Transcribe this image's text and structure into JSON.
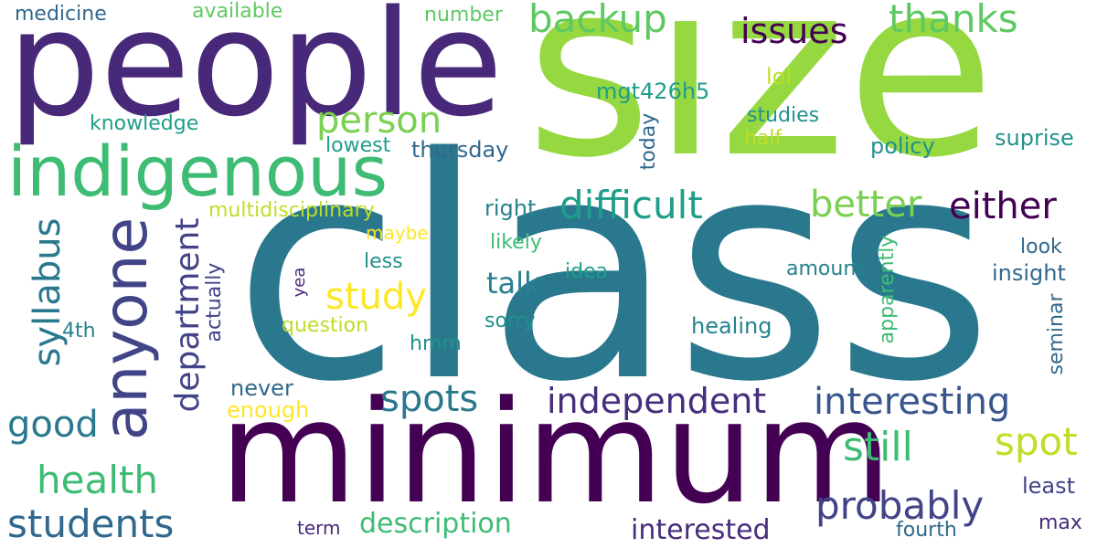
{
  "words": [
    {
      "text": "size",
      "color": "#95d840"
    },
    {
      "text": "class",
      "color": "#2a788e"
    },
    {
      "text": "people",
      "color": "#482878"
    },
    {
      "text": "minimum",
      "color": "#440154"
    },
    {
      "text": "indigenous",
      "color": "#3ebc74"
    },
    {
      "text": "anyone",
      "color": "#414487"
    },
    {
      "text": "backup",
      "color": "#5ec962"
    },
    {
      "text": "issues",
      "color": "#440154"
    },
    {
      "text": "thanks",
      "color": "#5ec962"
    },
    {
      "text": "person",
      "color": "#7ad151"
    },
    {
      "text": "difficult",
      "color": "#1f9e89"
    },
    {
      "text": "better",
      "color": "#7ad151"
    },
    {
      "text": "either",
      "color": "#440154"
    },
    {
      "text": "syllabus",
      "color": "#2a788e"
    },
    {
      "text": "department",
      "color": "#414487"
    },
    {
      "text": "study",
      "color": "#fde725"
    },
    {
      "text": "spots",
      "color": "#2a788e"
    },
    {
      "text": "independent",
      "color": "#472d7b"
    },
    {
      "text": "interesting",
      "color": "#39568c"
    },
    {
      "text": "good",
      "color": "#2a788e"
    },
    {
      "text": "health",
      "color": "#3ebc74"
    },
    {
      "text": "students",
      "color": "#31688e"
    },
    {
      "text": "still",
      "color": "#3ebc74"
    },
    {
      "text": "spot",
      "color": "#bddf26"
    },
    {
      "text": "probably",
      "color": "#414487"
    },
    {
      "text": "interested",
      "color": "#472d7b"
    },
    {
      "text": "description",
      "color": "#3ebc74"
    },
    {
      "text": "medicine",
      "color": "#31688e"
    },
    {
      "text": "available",
      "color": "#5ec962"
    },
    {
      "text": "number",
      "color": "#5ec962"
    },
    {
      "text": "mgt426h5",
      "color": "#1f9e89"
    },
    {
      "text": "lol",
      "color": "#bddf26"
    },
    {
      "text": "knowledge",
      "color": "#1f9e89"
    },
    {
      "text": "lowest",
      "color": "#1f9e89"
    },
    {
      "text": "thursday",
      "color": "#31688e"
    },
    {
      "text": "today",
      "color": "#31688e"
    },
    {
      "text": "studies",
      "color": "#21918c"
    },
    {
      "text": "half",
      "color": "#bddf26"
    },
    {
      "text": "policy",
      "color": "#21918c"
    },
    {
      "text": "suprise",
      "color": "#21918c"
    },
    {
      "text": "multidisciplinary",
      "color": "#bddf26"
    },
    {
      "text": "right",
      "color": "#26828e"
    },
    {
      "text": "maybe",
      "color": "#fde725"
    },
    {
      "text": "likely",
      "color": "#3ebc74"
    },
    {
      "text": "look",
      "color": "#31688e"
    },
    {
      "text": "less",
      "color": "#21918c"
    },
    {
      "text": "idea",
      "color": "#1f9e89"
    },
    {
      "text": "amount",
      "color": "#26828e"
    },
    {
      "text": "insight",
      "color": "#31688e"
    },
    {
      "text": "talk",
      "color": "#26828e"
    },
    {
      "text": "yea",
      "color": "#482878"
    },
    {
      "text": "actually",
      "color": "#414487"
    },
    {
      "text": "4th",
      "color": "#26828e"
    },
    {
      "text": "question",
      "color": "#bddf26"
    },
    {
      "text": "sorry",
      "color": "#21918c"
    },
    {
      "text": "healing",
      "color": "#26828e"
    },
    {
      "text": "apparently",
      "color": "#3ebc74"
    },
    {
      "text": "seminar",
      "color": "#31688e"
    },
    {
      "text": "hmm",
      "color": "#21918c"
    },
    {
      "text": "never",
      "color": "#31688e"
    },
    {
      "text": "enough",
      "color": "#fde725"
    },
    {
      "text": "least",
      "color": "#414487"
    },
    {
      "text": "term",
      "color": "#482878"
    },
    {
      "text": "fourth",
      "color": "#31688e"
    },
    {
      "text": "max",
      "color": "#472d7b"
    }
  ]
}
